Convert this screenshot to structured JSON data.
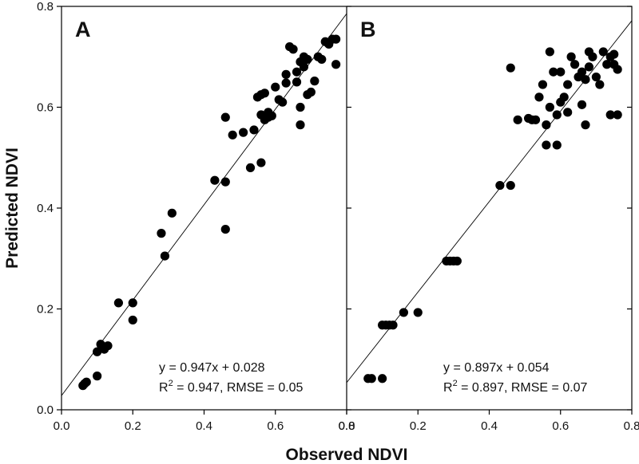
{
  "chart_data": [
    {
      "type": "scatter",
      "panel": "A",
      "xlabel": "Observed NDVI",
      "ylabel": "Predicted NDVI",
      "xlim": [
        0.0,
        0.8
      ],
      "ylim": [
        0.0,
        0.8
      ],
      "xticks": [
        "0.0",
        "0.2",
        "0.4",
        "0.6",
        "0.8"
      ],
      "yticks": [
        "0.0",
        "0.2",
        "0.4",
        "0.6",
        "0.8"
      ],
      "fit": {
        "slope": 0.947,
        "intercept": 0.028
      },
      "annotation": {
        "equation": "y = 0.947x + 0.028",
        "r2_prefix": "R",
        "r2_sup": "2",
        "r2_rest": " = 0.947, RMSE = 0.05"
      },
      "points": [
        [
          0.06,
          0.048
        ],
        [
          0.065,
          0.052
        ],
        [
          0.07,
          0.055
        ],
        [
          0.1,
          0.067
        ],
        [
          0.1,
          0.115
        ],
        [
          0.11,
          0.13
        ],
        [
          0.12,
          0.12
        ],
        [
          0.13,
          0.127
        ],
        [
          0.16,
          0.212
        ],
        [
          0.2,
          0.212
        ],
        [
          0.2,
          0.178
        ],
        [
          0.28,
          0.35
        ],
        [
          0.29,
          0.305
        ],
        [
          0.31,
          0.39
        ],
        [
          0.43,
          0.455
        ],
        [
          0.46,
          0.452
        ],
        [
          0.46,
          0.358
        ],
        [
          0.46,
          0.58
        ],
        [
          0.48,
          0.545
        ],
        [
          0.51,
          0.55
        ],
        [
          0.53,
          0.48
        ],
        [
          0.54,
          0.555
        ],
        [
          0.55,
          0.62
        ],
        [
          0.56,
          0.49
        ],
        [
          0.56,
          0.625
        ],
        [
          0.57,
          0.628
        ],
        [
          0.56,
          0.585
        ],
        [
          0.57,
          0.575
        ],
        [
          0.58,
          0.58
        ],
        [
          0.58,
          0.59
        ],
        [
          0.59,
          0.583
        ],
        [
          0.6,
          0.64
        ],
        [
          0.61,
          0.615
        ],
        [
          0.62,
          0.61
        ],
        [
          0.63,
          0.665
        ],
        [
          0.63,
          0.648
        ],
        [
          0.64,
          0.72
        ],
        [
          0.65,
          0.715
        ],
        [
          0.66,
          0.67
        ],
        [
          0.66,
          0.65
        ],
        [
          0.67,
          0.6
        ],
        [
          0.67,
          0.565
        ],
        [
          0.68,
          0.7
        ],
        [
          0.68,
          0.68
        ],
        [
          0.69,
          0.625
        ],
        [
          0.69,
          0.695
        ],
        [
          0.7,
          0.63
        ],
        [
          0.71,
          0.652
        ],
        [
          0.72,
          0.7
        ],
        [
          0.73,
          0.695
        ],
        [
          0.74,
          0.73
        ],
        [
          0.75,
          0.725
        ],
        [
          0.76,
          0.735
        ],
        [
          0.77,
          0.735
        ],
        [
          0.77,
          0.685
        ],
        [
          0.67,
          0.69
        ]
      ]
    },
    {
      "type": "scatter",
      "panel": "B",
      "xlabel": "Observed NDVI",
      "ylabel": "Predicted NDVI",
      "xlim": [
        0.0,
        0.8
      ],
      "ylim": [
        0.0,
        0.8
      ],
      "xticks": [
        "0.0",
        "0.2",
        "0.4",
        "0.6",
        "0.8"
      ],
      "yticks": [
        "0.0",
        "0.2",
        "0.4",
        "0.6",
        "0.8"
      ],
      "fit": {
        "slope": 0.897,
        "intercept": 0.054
      },
      "annotation": {
        "equation": "y = 0.897x + 0.054",
        "r2_prefix": "R",
        "r2_sup": "2",
        "r2_rest": " = 0.897, RMSE = 0.07"
      },
      "points": [
        [
          0.06,
          0.062
        ],
        [
          0.07,
          0.062
        ],
        [
          0.1,
          0.062
        ],
        [
          0.1,
          0.168
        ],
        [
          0.11,
          0.168
        ],
        [
          0.12,
          0.168
        ],
        [
          0.13,
          0.168
        ],
        [
          0.16,
          0.193
        ],
        [
          0.2,
          0.193
        ],
        [
          0.28,
          0.295
        ],
        [
          0.29,
          0.295
        ],
        [
          0.3,
          0.295
        ],
        [
          0.31,
          0.295
        ],
        [
          0.43,
          0.445
        ],
        [
          0.46,
          0.445
        ],
        [
          0.46,
          0.678
        ],
        [
          0.48,
          0.575
        ],
        [
          0.51,
          0.578
        ],
        [
          0.52,
          0.575
        ],
        [
          0.53,
          0.575
        ],
        [
          0.54,
          0.62
        ],
        [
          0.55,
          0.645
        ],
        [
          0.56,
          0.525
        ],
        [
          0.56,
          0.565
        ],
        [
          0.57,
          0.71
        ],
        [
          0.57,
          0.6
        ],
        [
          0.58,
          0.67
        ],
        [
          0.59,
          0.525
        ],
        [
          0.59,
          0.585
        ],
        [
          0.6,
          0.67
        ],
        [
          0.6,
          0.61
        ],
        [
          0.61,
          0.62
        ],
        [
          0.62,
          0.59
        ],
        [
          0.62,
          0.645
        ],
        [
          0.63,
          0.7
        ],
        [
          0.64,
          0.685
        ],
        [
          0.65,
          0.66
        ],
        [
          0.66,
          0.605
        ],
        [
          0.66,
          0.67
        ],
        [
          0.67,
          0.565
        ],
        [
          0.67,
          0.655
        ],
        [
          0.68,
          0.71
        ],
        [
          0.68,
          0.68
        ],
        [
          0.69,
          0.7
        ],
        [
          0.7,
          0.66
        ],
        [
          0.71,
          0.645
        ],
        [
          0.72,
          0.71
        ],
        [
          0.73,
          0.685
        ],
        [
          0.74,
          0.585
        ],
        [
          0.74,
          0.7
        ],
        [
          0.75,
          0.685
        ],
        [
          0.75,
          0.705
        ],
        [
          0.76,
          0.585
        ],
        [
          0.76,
          0.675
        ]
      ]
    }
  ]
}
